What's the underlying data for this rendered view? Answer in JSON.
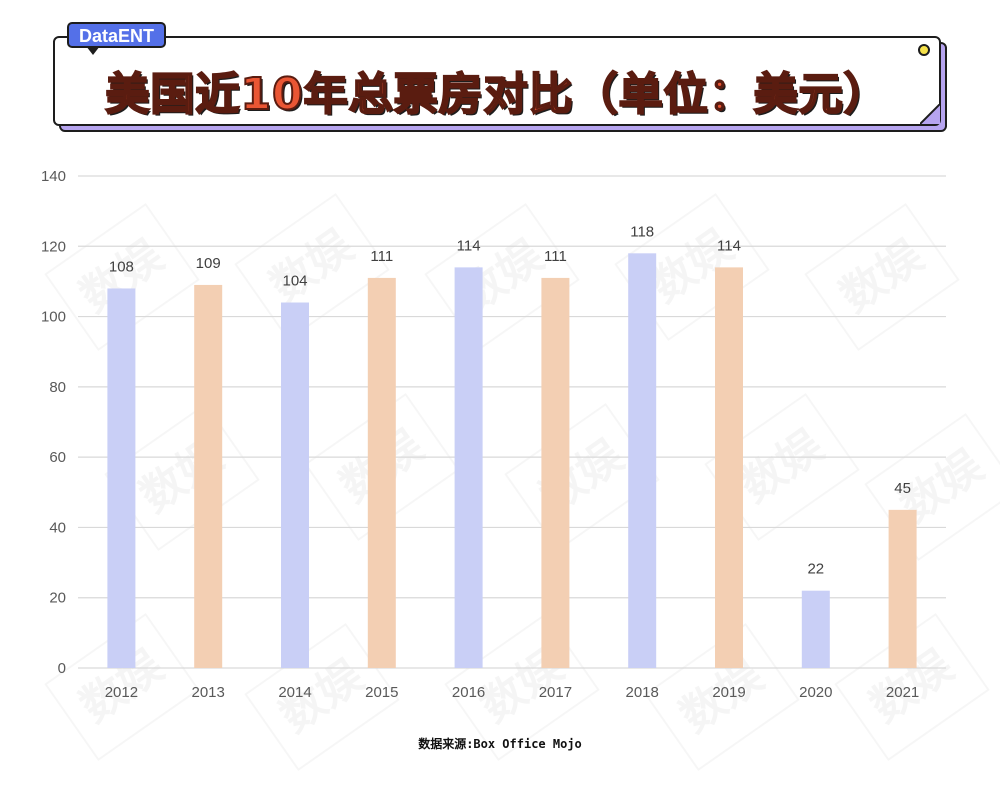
{
  "header": {
    "tag": "DataENT",
    "title": "美国近10年总票房对比（单位：美元）"
  },
  "watermark_text": "数娱",
  "footer": {
    "source": "数据来源:Box Office Mojo"
  },
  "colors": {
    "bar_primary": "#c9cff6",
    "bar_secondary": "#f3cfb3",
    "grid": "#d9d9d9",
    "title": "#ea5634",
    "tag": "#5470e8",
    "shadow": "#b6a4ef"
  },
  "chart_data": {
    "type": "bar",
    "title": "美国近10年总票房对比（单位：美元）",
    "xlabel": "",
    "ylabel": "",
    "categories": [
      "2012",
      "2013",
      "2014",
      "2015",
      "2016",
      "2017",
      "2018",
      "2019",
      "2020",
      "2021"
    ],
    "values": [
      108,
      109,
      104,
      111,
      114,
      111,
      118,
      114,
      22,
      45
    ],
    "value_labels": [
      "108",
      "109",
      "104",
      "111",
      "114",
      "111",
      "118",
      "114",
      "22",
      "45"
    ],
    "bar_color_pattern": [
      "primary",
      "secondary",
      "primary",
      "secondary",
      "primary",
      "secondary",
      "primary",
      "secondary",
      "primary",
      "secondary"
    ],
    "ylim": [
      0,
      140
    ],
    "yticks": [
      0,
      20,
      40,
      60,
      80,
      100,
      120,
      140
    ],
    "ytick_labels": [
      "0",
      "20",
      "40",
      "60",
      "80",
      "100",
      "120",
      "140"
    ],
    "grid": true,
    "legend": "none"
  }
}
